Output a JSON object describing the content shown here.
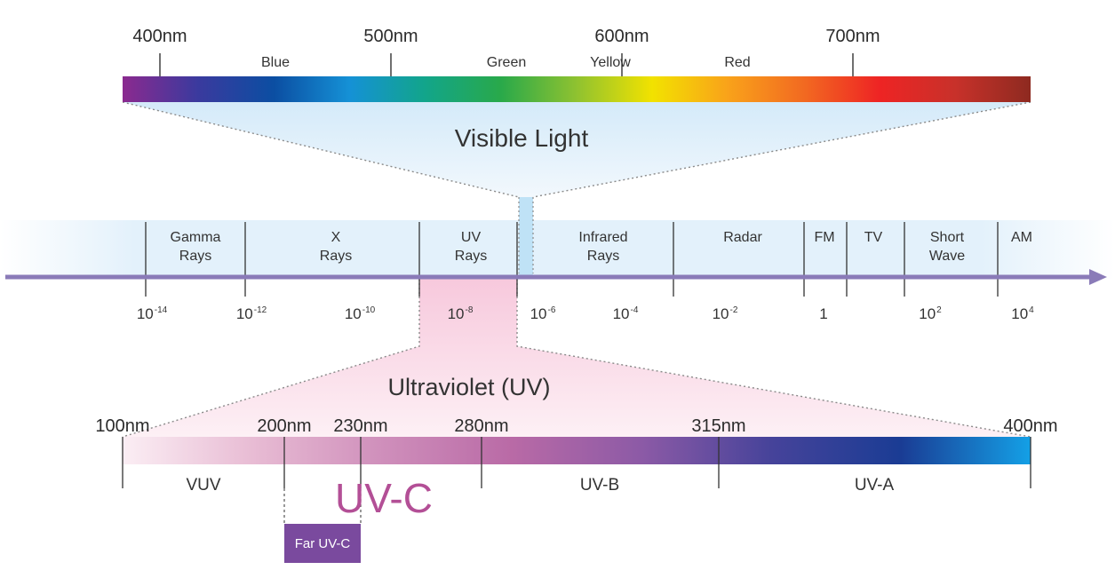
{
  "visible": {
    "title": "Visible Light",
    "wavelengths": [
      {
        "label": "400nm",
        "nm": 400
      },
      {
        "label": "500nm",
        "nm": 500
      },
      {
        "label": "600nm",
        "nm": 600
      },
      {
        "label": "700nm",
        "nm": 700
      }
    ],
    "colors": [
      {
        "label": "Blue",
        "nm": 450
      },
      {
        "label": "Green",
        "nm": 550
      },
      {
        "label": "Yellow",
        "nm": 595
      },
      {
        "label": "Red",
        "nm": 650
      }
    ],
    "gradient": [
      "#8b2a8f",
      "#3a3a9e",
      "#0b4ea2",
      "#1591d6",
      "#12a58a",
      "#29a94a",
      "#8fc230",
      "#f2e200",
      "#f9a21a",
      "#f26a21",
      "#ee2424",
      "#c8312a",
      "#8e2a20"
    ]
  },
  "spectrum": {
    "bands": [
      {
        "lines": [
          "Gamma",
          "Rays"
        ]
      },
      {
        "lines": [
          "X",
          "Rays"
        ]
      },
      {
        "lines": [
          "UV",
          "Rays"
        ]
      },
      {
        "lines": [
          "Infrared",
          "Rays"
        ]
      },
      {
        "lines": [
          "Radar"
        ]
      },
      {
        "lines": [
          "FM"
        ]
      },
      {
        "lines": [
          "TV"
        ]
      },
      {
        "lines": [
          "Short",
          "Wave"
        ]
      },
      {
        "lines": [
          "AM"
        ]
      }
    ],
    "powers": [
      {
        "base": "10",
        "exp": "-14"
      },
      {
        "base": "10",
        "exp": "-12"
      },
      {
        "base": "10",
        "exp": "-10"
      },
      {
        "base": "10",
        "exp": "-8"
      },
      {
        "base": "10",
        "exp": "-6"
      },
      {
        "base": "10",
        "exp": "-4"
      },
      {
        "base": "10",
        "exp": "-2"
      },
      {
        "base": "1",
        "exp": ""
      },
      {
        "base": "10",
        "exp": "2"
      },
      {
        "base": "10",
        "exp": "4"
      }
    ],
    "axis_color": "#8a7bb8"
  },
  "uv": {
    "title": "Ultraviolet (UV)",
    "wavelengths": [
      {
        "label": "100nm",
        "nm": 100
      },
      {
        "label": "200nm",
        "nm": 200
      },
      {
        "label": "230nm",
        "nm": 230
      },
      {
        "label": "280nm",
        "nm": 280
      },
      {
        "label": "315nm",
        "nm": 315
      },
      {
        "label": "400nm",
        "nm": 400
      }
    ],
    "sub_bands": [
      {
        "label": "VUV"
      },
      {
        "label": "UV-B"
      },
      {
        "label": "UV-A"
      }
    ],
    "uvc_label": "UV-C",
    "far_uvc_label": "Far UV-C",
    "uvc_color": "#b34f96",
    "far_uvc_color": "#7a4a9e",
    "gradient": [
      "#fbeef4",
      "#e8bcd4",
      "#cf8fbb",
      "#b96aa6",
      "#8c5aa6",
      "#46439a",
      "#1a3c94",
      "#14a0e6"
    ]
  }
}
